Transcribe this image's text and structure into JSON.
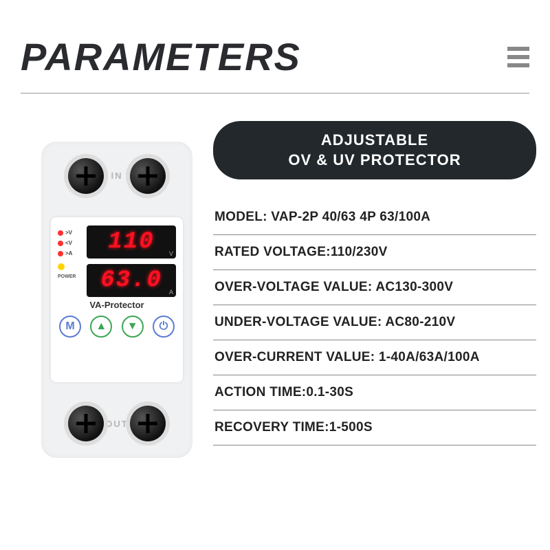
{
  "header": {
    "title": "PARAMETERS"
  },
  "device": {
    "io_in": "IN",
    "io_out": "OUT",
    "display_top": "110",
    "display_top_unit": "V",
    "display_bottom": "63.0",
    "display_bottom_unit": "A",
    "indicators": {
      "ov": ">V",
      "uv": "<V",
      "oa": ">A",
      "power": "POWER"
    },
    "dot_colors": {
      "ov": "#ff3030",
      "uv": "#ff3030",
      "oa": "#ff3030",
      "power": "#ffd400"
    },
    "brand": "VA-Protector",
    "buttons": {
      "m": "M",
      "up": "▲",
      "down": "▼",
      "power": "⏻"
    }
  },
  "pill": {
    "line1": "ADJUSTABLE",
    "line2": "OV & UV PROTECTOR"
  },
  "specs": [
    "MODEL: VAP-2P 40/63 4P 63/100A",
    "RATED VOLTAGE:110/230V",
    "OVER-VOLTAGE VALUE: AC130-300V",
    "UNDER-VOLTAGE VALUE: AC80-210V",
    "OVER-CURRENT VALUE: 1-40A/63A/100A",
    "ACTION TIME:0.1-30S",
    "RECOVERY TIME:1-500S"
  ],
  "colors": {
    "title": "#2a2b2f",
    "pill_bg": "#22282b",
    "lcd_text": "#ff1020"
  }
}
